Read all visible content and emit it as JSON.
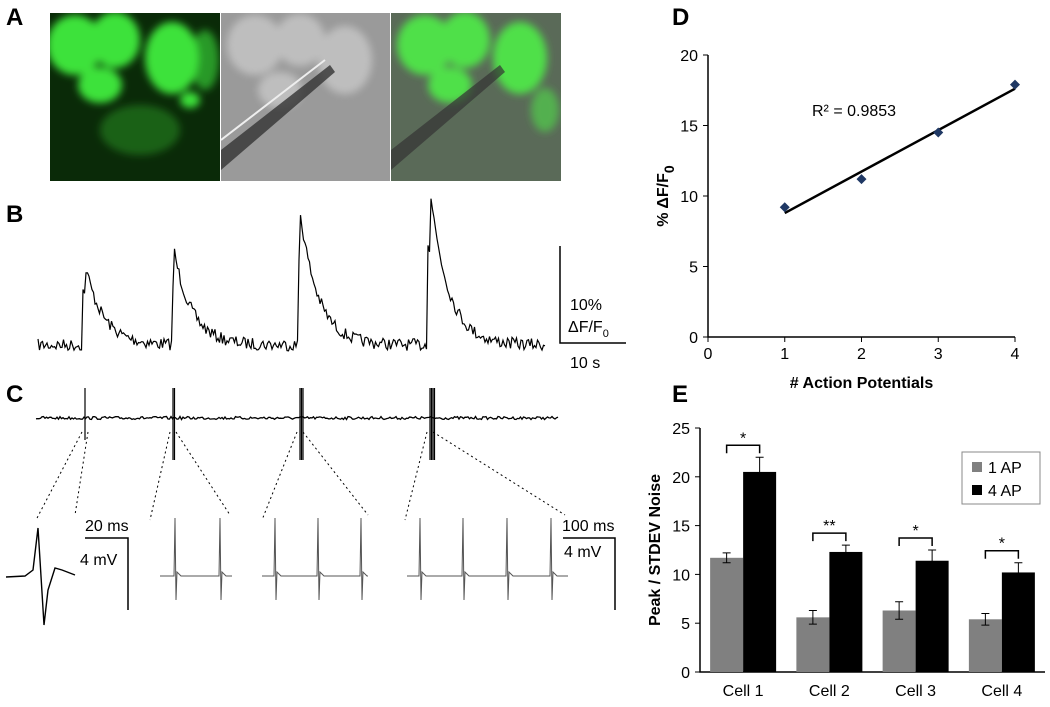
{
  "panels": {
    "labels": [
      "A",
      "B",
      "C",
      "D",
      "E"
    ],
    "b_scale": {
      "y": "10%",
      "y2": "ΔF/F",
      "y2_sub": "0",
      "x": "10 s"
    },
    "c_scale": {
      "x1": "20 ms",
      "y1": "4 mV",
      "x2": "100 ms",
      "y2": "4 mV"
    }
  },
  "chart_data": [
    {
      "type": "scatter",
      "x": [
        1,
        2,
        3,
        4
      ],
      "values": [
        9.2,
        11.2,
        14.5,
        17.9
      ],
      "color": "#1f3864",
      "xlabel": "# Action Potentials",
      "ylabel": "% ΔF/F",
      "ylabel_sub": "0",
      "annotation": "R² = 0.9853",
      "trendline": true,
      "xlim": [
        0,
        4
      ],
      "xticks": [
        0,
        1,
        2,
        3,
        4
      ],
      "ylim": [
        0,
        20
      ],
      "yticks": [
        0,
        5,
        10,
        15,
        20
      ]
    },
    {
      "type": "bar",
      "categories": [
        "Cell 1",
        "Cell 2",
        "Cell 3",
        "Cell 4"
      ],
      "series": [
        {
          "name": "1 AP",
          "color": "#808080",
          "values": [
            11.7,
            5.6,
            6.3,
            5.4
          ],
          "errors": [
            0.5,
            0.7,
            0.9,
            0.6
          ]
        },
        {
          "name": "4 AP",
          "color": "#000000",
          "values": [
            20.5,
            12.3,
            11.4,
            10.2
          ],
          "errors": [
            1.5,
            0.7,
            1.1,
            1.0
          ]
        }
      ],
      "annotations": [
        "*",
        "**",
        "*",
        "*"
      ],
      "ylabel": "Peak / STDEV Noise",
      "legend": "upper right",
      "ylim": [
        0,
        25
      ],
      "yticks": [
        0,
        5,
        10,
        15,
        20,
        25
      ]
    }
  ]
}
